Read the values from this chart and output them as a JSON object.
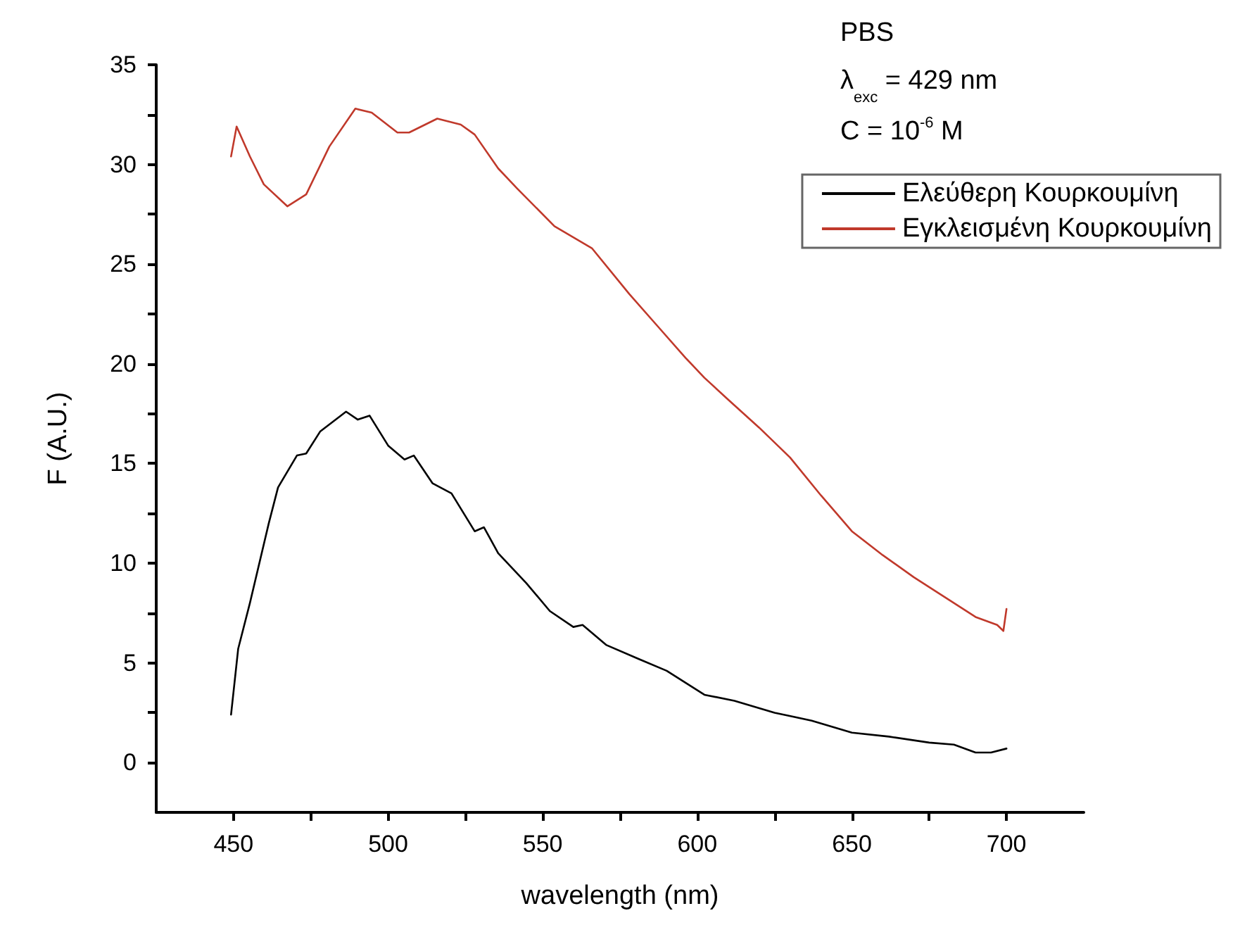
{
  "chart_data": {
    "type": "line",
    "xlabel": "wavelength (nm)",
    "ylabel": "F (A.U.)",
    "annotations": [
      "PBS",
      "λ$_{exc}$ = 429 nm",
      "C = 10$^{-6}$ M"
    ],
    "xlim": [
      425,
      725
    ],
    "ylim": [
      -2.5,
      35
    ],
    "xticks": [
      450,
      {
        "value": 475,
        "label": null
      },
      500,
      {
        "value": 525,
        "label": null
      },
      550,
      {
        "value": 575,
        "label": null
      },
      600,
      {
        "value": 625,
        "label": null
      },
      650,
      {
        "value": 675,
        "label": null
      },
      700
    ],
    "yticks": [
      0,
      {
        "value": 2.5,
        "label": null
      },
      5,
      {
        "value": 7.5,
        "label": null
      },
      10,
      {
        "value": 12.5,
        "label": null
      },
      15,
      {
        "value": 17.5,
        "label": null
      },
      20,
      {
        "value": 22.5,
        "label": null
      },
      25,
      {
        "value": 27.5,
        "label": null
      },
      30,
      {
        "value": 32.5,
        "label": null
      },
      35
    ],
    "grid": false,
    "legend": "top right",
    "marker": "none",
    "line_style": "solid",
    "series": [
      {
        "name": "Ελεύθερη Κουρκουμίνη",
        "color": "#000000",
        "x": [
          449.2,
          451.5,
          455.3,
          461.4,
          464.4,
          470.5,
          473.5,
          478,
          486.4,
          490.2,
          494,
          500,
          505.3,
          508.3,
          514.4,
          520.5,
          528,
          531,
          535.6,
          544.7,
          552.3,
          559.9,
          562.9,
          570.5,
          581,
          590.1,
          602.3,
          612,
          625,
          637,
          650,
          662,
          675,
          683,
          690,
          695,
          700
        ],
        "values": [
          2.4,
          5.7,
          8.0,
          12.0,
          13.8,
          15.4,
          15.5,
          16.6,
          17.6,
          17.2,
          17.4,
          15.9,
          15.2,
          15.4,
          14.0,
          13.5,
          11.6,
          11.8,
          10.5,
          9.0,
          7.6,
          6.8,
          6.9,
          5.9,
          5.2,
          4.6,
          3.4,
          3.1,
          2.5,
          2.1,
          1.5,
          1.3,
          1.0,
          0.9,
          0.5,
          0.5,
          0.7
        ]
      },
      {
        "name": "Εγκλεισμένη Κουρκουμίνη",
        "color": "#c0392b",
        "x": [
          449.2,
          451,
          455.3,
          459.8,
          467.4,
          473.5,
          481,
          489.4,
          494.7,
          503,
          506.8,
          515.9,
          523.5,
          528,
          535.6,
          541.7,
          553.8,
          565.9,
          578,
          587.1,
          596.2,
          602.3,
          610,
          620,
          630,
          640,
          650,
          660,
          670,
          680,
          690,
          697,
          699,
          700
        ],
        "values": [
          30.4,
          31.9,
          30.4,
          29.0,
          27.9,
          28.5,
          30.9,
          32.8,
          32.6,
          31.6,
          31.6,
          32.3,
          32.0,
          31.5,
          29.8,
          28.8,
          26.9,
          25.8,
          23.5,
          21.9,
          20.3,
          19.3,
          18.2,
          16.8,
          15.3,
          13.4,
          11.6,
          10.4,
          9.3,
          8.3,
          7.3,
          6.9,
          6.6,
          7.7
        ]
      }
    ]
  }
}
